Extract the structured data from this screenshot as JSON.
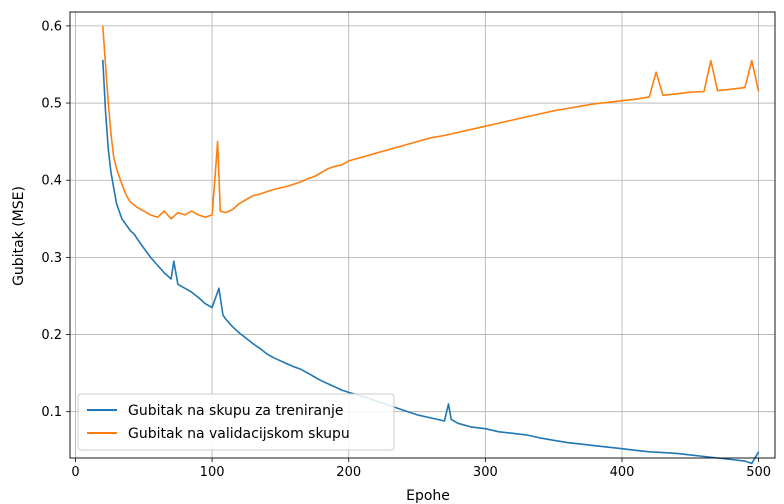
{
  "chart_data": {
    "type": "line",
    "xlabel": "Epohe",
    "ylabel": "Gubitak (MSE)",
    "xlim": [
      -4,
      512
    ],
    "ylim": [
      0.04,
      0.618
    ],
    "xticks": [
      0,
      100,
      200,
      300,
      400,
      500
    ],
    "yticks": [
      0.1,
      0.2,
      0.3,
      0.4,
      0.5,
      0.6
    ],
    "grid": true,
    "legend_position": "lower-left",
    "series": [
      {
        "name": "Gubitak na skupu za treniranje",
        "color": "#1f77b4",
        "x": [
          20,
          22,
          24,
          26,
          28,
          30,
          32,
          34,
          36,
          38,
          40,
          43,
          46,
          50,
          55,
          60,
          65,
          70,
          72,
          75,
          80,
          85,
          90,
          95,
          100,
          103,
          105,
          108,
          110,
          115,
          120,
          125,
          130,
          135,
          140,
          145,
          150,
          155,
          160,
          165,
          170,
          175,
          180,
          185,
          190,
          195,
          200,
          210,
          220,
          230,
          240,
          250,
          260,
          270,
          273,
          275,
          280,
          290,
          300,
          310,
          320,
          330,
          340,
          350,
          360,
          370,
          380,
          390,
          400,
          410,
          420,
          430,
          440,
          450,
          460,
          470,
          480,
          490,
          495,
          500
        ],
        "y": [
          0.556,
          0.49,
          0.44,
          0.41,
          0.39,
          0.37,
          0.36,
          0.35,
          0.345,
          0.34,
          0.335,
          0.33,
          0.322,
          0.312,
          0.3,
          0.29,
          0.28,
          0.272,
          0.295,
          0.265,
          0.26,
          0.255,
          0.248,
          0.24,
          0.235,
          0.25,
          0.26,
          0.225,
          0.22,
          0.21,
          0.202,
          0.195,
          0.188,
          0.182,
          0.175,
          0.17,
          0.166,
          0.162,
          0.158,
          0.155,
          0.15,
          0.145,
          0.14,
          0.136,
          0.132,
          0.128,
          0.125,
          0.12,
          0.114,
          0.108,
          0.102,
          0.096,
          0.092,
          0.088,
          0.11,
          0.09,
          0.085,
          0.08,
          0.078,
          0.074,
          0.072,
          0.07,
          0.066,
          0.063,
          0.06,
          0.058,
          0.056,
          0.054,
          0.052,
          0.05,
          0.048,
          0.047,
          0.046,
          0.044,
          0.042,
          0.04,
          0.038,
          0.036,
          0.033,
          0.048
        ]
      },
      {
        "name": "Gubitak na validacijskom skupu",
        "color": "#ff7f0e",
        "x": [
          20,
          22,
          24,
          26,
          28,
          30,
          32,
          34,
          36,
          38,
          40,
          45,
          50,
          55,
          60,
          65,
          70,
          75,
          80,
          85,
          90,
          95,
          100,
          102,
          104,
          106,
          110,
          115,
          120,
          125,
          130,
          135,
          140,
          145,
          150,
          155,
          160,
          165,
          170,
          175,
          180,
          185,
          190,
          195,
          200,
          210,
          220,
          230,
          240,
          250,
          260,
          270,
          280,
          290,
          300,
          310,
          320,
          330,
          340,
          350,
          360,
          370,
          380,
          390,
          400,
          410,
          420,
          425,
          430,
          440,
          450,
          460,
          465,
          470,
          480,
          490,
          495,
          500
        ],
        "y": [
          0.6,
          0.55,
          0.5,
          0.46,
          0.43,
          0.415,
          0.405,
          0.395,
          0.385,
          0.378,
          0.372,
          0.365,
          0.36,
          0.355,
          0.352,
          0.36,
          0.35,
          0.358,
          0.355,
          0.36,
          0.355,
          0.352,
          0.355,
          0.4,
          0.45,
          0.36,
          0.358,
          0.362,
          0.37,
          0.375,
          0.38,
          0.382,
          0.385,
          0.388,
          0.39,
          0.392,
          0.395,
          0.398,
          0.402,
          0.405,
          0.41,
          0.415,
          0.418,
          0.42,
          0.425,
          0.43,
          0.435,
          0.44,
          0.445,
          0.45,
          0.455,
          0.458,
          0.462,
          0.466,
          0.47,
          0.474,
          0.478,
          0.482,
          0.486,
          0.49,
          0.493,
          0.496,
          0.499,
          0.501,
          0.503,
          0.505,
          0.508,
          0.54,
          0.51,
          0.512,
          0.514,
          0.515,
          0.555,
          0.516,
          0.518,
          0.52,
          0.555,
          0.515
        ]
      }
    ]
  }
}
